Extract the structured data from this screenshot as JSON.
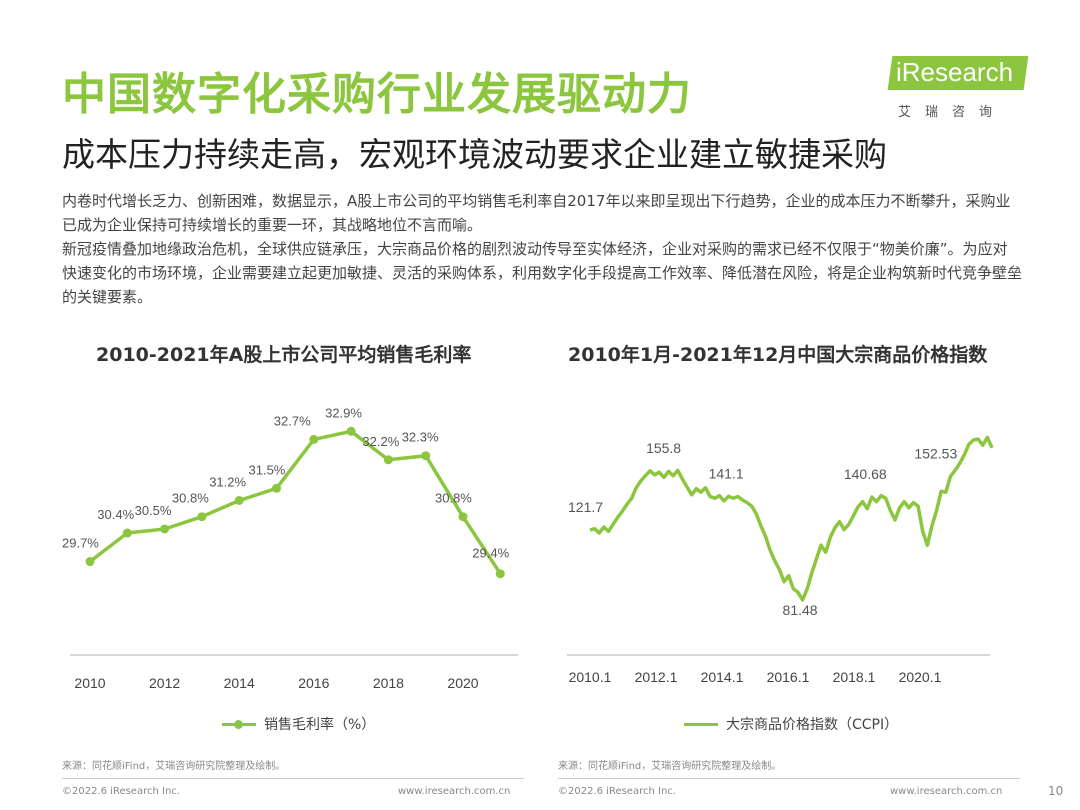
{
  "header": {
    "title": "中国数字化采购行业发展驱动力",
    "subtitle": "成本压力持续走高，宏观环境波动要求企业建立敏捷采购"
  },
  "logo": {
    "brand": "iResearch",
    "sub": "艾瑞咨询",
    "color": "#8cc63f"
  },
  "intro": {
    "p1": "内卷时代增长乏力、创新困难，数据显示，A股上市公司的平均销售毛利率自2017年以来即呈现出下行趋势，企业的成本压力不断攀升，采购业已成为企业保持可持续增长的重要一环，其战略地位不言而喻。",
    "p2": "新冠疫情叠加地缘政治危机，全球供应链承压，大宗商品价格的剧烈波动传导至实体经济，企业对采购的需求已经不仅限于“物美价廉”。为应对快速变化的市场环境，企业需要建立起更加敏捷、灵活的采购体系，利用数字化手段提高工作效率、降低潜在风险，将是企业构筑新时代竞争壁垒的关键要素。"
  },
  "colors": {
    "accent": "#8cc63f",
    "axis": "#cccccc",
    "text": "#333333"
  },
  "chart_data": [
    {
      "type": "line",
      "title": "2010-2021年A股上市公司平均销售毛利率",
      "x": [
        2010,
        2011,
        2012,
        2013,
        2014,
        2015,
        2016,
        2017,
        2018,
        2019,
        2020,
        2021
      ],
      "series": [
        {
          "name": "销售毛利率（%）",
          "values": [
            29.7,
            30.4,
            30.5,
            30.8,
            31.2,
            31.5,
            32.7,
            32.9,
            32.2,
            32.3,
            30.8,
            29.4
          ]
        }
      ],
      "data_labels": [
        "29.7%",
        "30.4%",
        "30.5%",
        "30.8%",
        "31.2%",
        "31.5%",
        "32.7%",
        "32.9%",
        "32.2%",
        "32.3%",
        "30.8%",
        "29.4%"
      ],
      "xticks": [
        "2010",
        "2012",
        "2014",
        "2016",
        "2018",
        "2020"
      ],
      "markers": true,
      "grid": false,
      "legend_position": "bottom",
      "source": "来源：同花顺iFind，艾瑞咨询研究院整理及绘制。"
    },
    {
      "type": "line",
      "title": "2010年1月-2021年12月中国大宗商品价格指数",
      "x_start": "2010-01",
      "x_end": "2021-12",
      "series": [
        {
          "name": "大宗商品价格指数（CCPI）",
          "values": [
            121.7,
            122.5,
            120.0,
            123.5,
            121.0,
            125.0,
            129.0,
            132.5,
            136.5,
            140.0,
            146.0,
            150.0,
            153.0,
            155.8,
            153.5,
            155.0,
            152.0,
            155.5,
            153.0,
            156.0,
            151.0,
            146.5,
            142.0,
            145.5,
            143.5,
            146.0,
            141.0,
            140.0,
            141.5,
            138.5,
            141.1,
            140.0,
            141.0,
            139.0,
            137.5,
            135.5,
            131.0,
            124.0,
            118.0,
            110.0,
            104.0,
            99.0,
            92.0,
            95.5,
            88.0,
            86.0,
            81.48,
            88.0,
            97.0,
            105.0,
            113.0,
            109.0,
            117.5,
            123.0,
            126.5,
            122.0,
            125.0,
            130.0,
            135.0,
            138.0,
            134.0,
            140.68,
            138.0,
            141.5,
            140.0,
            133.0,
            127.5,
            134.5,
            138.0,
            134.5,
            137.5,
            135.5,
            121.0,
            113.0,
            124.0,
            133.0,
            144.0,
            143.5,
            152.53,
            156.0,
            160.0,
            165.0,
            171.0,
            173.5,
            174.0,
            170.5,
            175.0,
            169.0
          ]
        }
      ],
      "data_labels": [
        "121.7",
        "155.8",
        "141.1",
        "81.48",
        "140.68",
        "152.53"
      ],
      "xticks": [
        "2010.1",
        "2012.1",
        "2014.1",
        "2016.1",
        "2018.1",
        "2020.1"
      ],
      "markers": false,
      "grid": false,
      "legend_position": "bottom",
      "source": "来源：同花顺iFind，艾瑞咨询研究院整理及绘制。"
    }
  ],
  "footer": {
    "copyright": "©2022.6 iResearch Inc.",
    "website": "www.iresearch.com.cn",
    "page": "10"
  }
}
